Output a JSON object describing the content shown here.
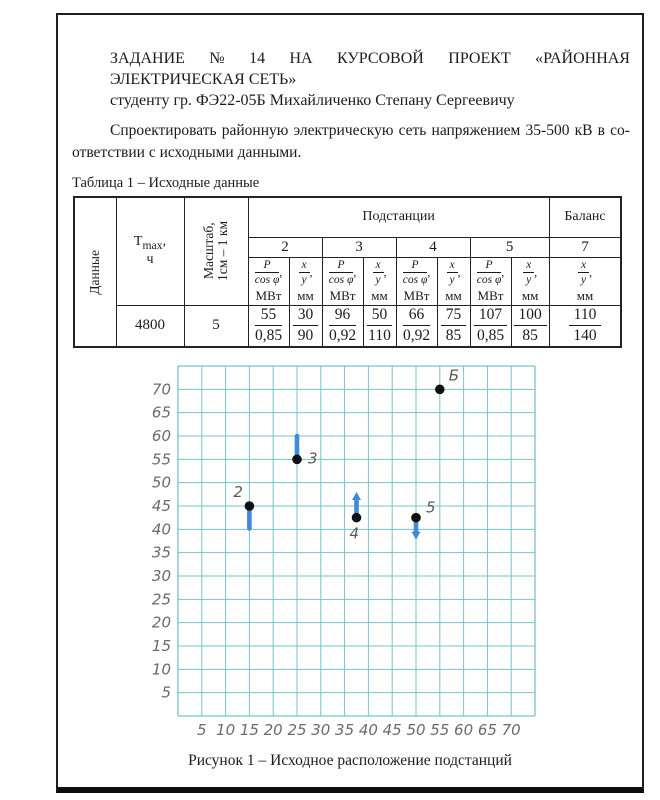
{
  "document": {
    "title_line1": "ЗАДАНИЕ № 14 НА КУРСОВОЙ ПРОЕКТ «РАЙОННАЯ",
    "title_line2": "ЭЛЕКТРИЧЕСКАЯ СЕТЬ»",
    "student_line": "студенту гр. ФЭ22-05Б Михайличенко Степану Сергеевичу",
    "body_line1": "Спроектировать районную электрическую сеть напряжением 35-500 кВ в со-",
    "body_line2": "ответствии с исходными данными."
  },
  "table": {
    "caption": "Таблица 1 – Исходные данные",
    "headers": {
      "dannye": "Данные",
      "tmax_base": "Т",
      "tmax_sub": "max",
      "tmax_tail": ",",
      "tmax_unit": "ч",
      "scale_line1": "Масштаб,",
      "scale_line2": "1см – 1 км",
      "podstancii": "Подстанции",
      "balans": "Баланс",
      "substation_numbers": [
        "2",
        "3",
        "4",
        "5"
      ],
      "balans_number": "7",
      "p_frac": {
        "num": "P",
        "den": "cos φ",
        "comma": ",",
        "unit": "МВт"
      },
      "xy_frac": {
        "num": "x",
        "den": "y",
        "comma": ",",
        "unit": "мм"
      }
    },
    "values": {
      "tmax": "4800",
      "scale": "5",
      "substations": [
        {
          "p_num": "55",
          "p_den": "0,85",
          "xy_num": "30",
          "xy_den": "90"
        },
        {
          "p_num": "96",
          "p_den": "0,92",
          "xy_num": "50",
          "xy_den": "110"
        },
        {
          "p_num": "66",
          "p_den": "0,92",
          "xy_num": "75",
          "xy_den": "85"
        },
        {
          "p_num": "107",
          "p_den": "0,85",
          "xy_num": "100",
          "xy_den": "85"
        }
      ],
      "balans": {
        "num": "110",
        "den": "140"
      }
    }
  },
  "figure": {
    "caption": "Рисунок 1 – Исходное расположение подстанций"
  },
  "chart_data": {
    "type": "scatter",
    "title": "Исходное расположение подстанций",
    "points": [
      {
        "label": "2",
        "x": 15,
        "y": 45,
        "arrow": "down",
        "arrow_len": 4.8,
        "arrow_head": false
      },
      {
        "label": "3",
        "x": 25,
        "y": 55,
        "arrow": "up",
        "arrow_len": 5.0,
        "arrow_head": false
      },
      {
        "label": "4",
        "x": 37.5,
        "y": 42.5,
        "arrow": "up",
        "arrow_len": 5.5,
        "arrow_head": true
      },
      {
        "label": "5",
        "x": 50,
        "y": 42.5,
        "arrow": "down",
        "arrow_len": 4.7,
        "arrow_head": true
      },
      {
        "label": "Б",
        "x": 55,
        "y": 70,
        "arrow": "none",
        "arrow_len": 0,
        "arrow_head": false
      }
    ],
    "x_ticks": [
      5,
      10,
      15,
      20,
      25,
      30,
      35,
      40,
      45,
      50,
      55,
      60,
      65,
      70
    ],
    "y_ticks": [
      5,
      10,
      15,
      20,
      25,
      30,
      35,
      40,
      45,
      50,
      55,
      60,
      65,
      70
    ],
    "xlim": [
      0,
      75
    ],
    "ylim": [
      0,
      75
    ],
    "grid": true,
    "grid_step": 5,
    "colors": {
      "grid": "#74c3cb",
      "point": "#101010",
      "arrow": "#3e8bdb",
      "tick_label": "#6b6b6b",
      "point_label": "#5a5a5a"
    }
  }
}
